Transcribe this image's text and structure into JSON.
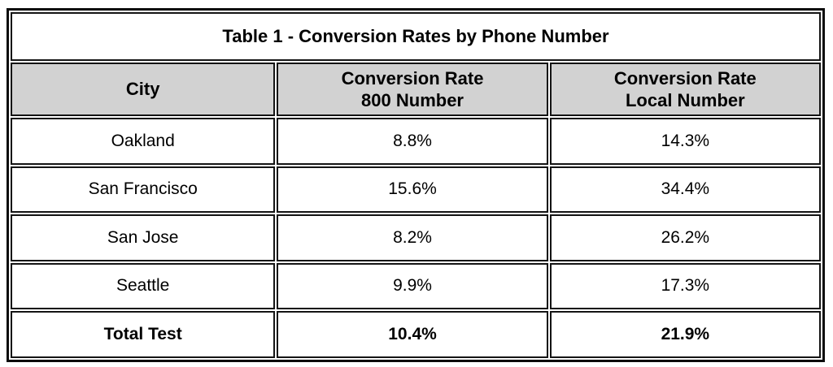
{
  "table": {
    "title": "Table 1 - Conversion Rates by Phone Number",
    "headers": {
      "city": "City",
      "rate800_line1": "Conversion Rate",
      "rate800_line2": "800 Number",
      "local_line1": "Conversion Rate",
      "local_line2": "Local Number"
    },
    "rows": [
      {
        "city": "Oakland",
        "rate_800": "8.8%",
        "rate_local": "14.3%"
      },
      {
        "city": "San Francisco",
        "rate_800": "15.6%",
        "rate_local": "34.4%"
      },
      {
        "city": "San Jose",
        "rate_800": "8.2%",
        "rate_local": "26.2%"
      },
      {
        "city": "Seattle",
        "rate_800": "9.9%",
        "rate_local": "17.3%"
      }
    ],
    "total_row": {
      "city": "Total Test",
      "rate_800": "10.4%",
      "rate_local": "21.9%"
    }
  },
  "colors": {
    "header_background": "#d2d2d2",
    "border": "#141414",
    "text": "#000000",
    "page_background": "#ffffff"
  },
  "chart_data": {
    "type": "table",
    "title": "Table 1 - Conversion Rates by Phone Number",
    "columns": [
      "City",
      "Conversion Rate 800 Number",
      "Conversion Rate Local Number"
    ],
    "rows": [
      [
        "Oakland",
        "8.8%",
        "14.3%"
      ],
      [
        "San Francisco",
        "15.6%",
        "34.4%"
      ],
      [
        "San Jose",
        "8.2%",
        "26.2%"
      ],
      [
        "Seattle",
        "9.9%",
        "17.3%"
      ],
      [
        "Total Test",
        "10.4%",
        "21.9%"
      ]
    ],
    "series": [
      {
        "name": "Conversion Rate 800 Number",
        "values": [
          8.8,
          15.6,
          8.2,
          9.9,
          10.4
        ]
      },
      {
        "name": "Conversion Rate Local Number",
        "values": [
          14.3,
          34.4,
          26.2,
          17.3,
          21.9
        ]
      }
    ],
    "categories": [
      "Oakland",
      "San Francisco",
      "San Jose",
      "Seattle",
      "Total Test"
    ],
    "value_unit": "%"
  }
}
